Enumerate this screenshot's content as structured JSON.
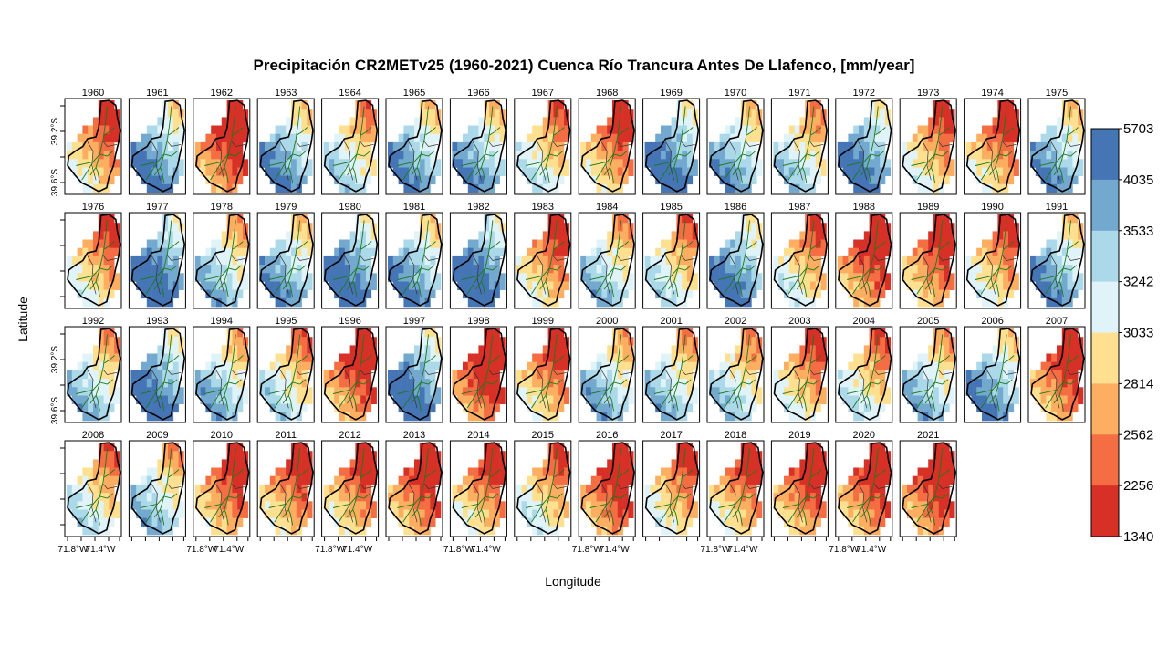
{
  "chart_data": {
    "type": "heatmap",
    "title": "Precipitación CR2METv25 (1960-2021) Cuenca Río Trancura Antes De Llafenco, [mm/year]",
    "xlabel": "Longitude",
    "ylabel": "Latitude",
    "x_tick_labels": [
      "71.8°W",
      "71.4°W"
    ],
    "y_tick_labels": [
      "39.2°S",
      "39.6°S"
    ],
    "colorbar": {
      "labels": [
        "5703",
        "4035",
        "3533",
        "3242",
        "3033",
        "2814",
        "2562",
        "2256",
        "1340"
      ],
      "breaks": [
        5703,
        4035,
        3533,
        3242,
        3033,
        2814,
        2562,
        2256,
        1340
      ],
      "colors": [
        "#4575b4",
        "#74a9cf",
        "#abd9e9",
        "#e0f3f8",
        "#fee090",
        "#fdae61",
        "#f46d43",
        "#d73027"
      ]
    },
    "grid": false,
    "panel_layout": {
      "rows": 4,
      "cols": 16
    },
    "panels": [
      {
        "year": "1960",
        "wetness": 0.25
      },
      {
        "year": "1961",
        "wetness": 0.75
      },
      {
        "year": "1962",
        "wetness": 0.05
      },
      {
        "year": "1963",
        "wetness": 0.72
      },
      {
        "year": "1964",
        "wetness": 0.48
      },
      {
        "year": "1965",
        "wetness": 0.7
      },
      {
        "year": "1966",
        "wetness": 0.68
      },
      {
        "year": "1967",
        "wetness": 0.4
      },
      {
        "year": "1968",
        "wetness": 0.2
      },
      {
        "year": "1969",
        "wetness": 0.82
      },
      {
        "year": "1970",
        "wetness": 0.65
      },
      {
        "year": "1971",
        "wetness": 0.5
      },
      {
        "year": "1972",
        "wetness": 0.8
      },
      {
        "year": "1973",
        "wetness": 0.3
      },
      {
        "year": "1974",
        "wetness": 0.22
      },
      {
        "year": "1975",
        "wetness": 0.68
      },
      {
        "year": "1976",
        "wetness": 0.3
      },
      {
        "year": "1977",
        "wetness": 0.88
      },
      {
        "year": "1978",
        "wetness": 0.58
      },
      {
        "year": "1979",
        "wetness": 0.68
      },
      {
        "year": "1980",
        "wetness": 0.85
      },
      {
        "year": "1981",
        "wetness": 0.72
      },
      {
        "year": "1982",
        "wetness": 0.88
      },
      {
        "year": "1983",
        "wetness": 0.25
      },
      {
        "year": "1984",
        "wetness": 0.55
      },
      {
        "year": "1985",
        "wetness": 0.42
      },
      {
        "year": "1986",
        "wetness": 0.78
      },
      {
        "year": "1987",
        "wetness": 0.35
      },
      {
        "year": "1988",
        "wetness": 0.08
      },
      {
        "year": "1989",
        "wetness": 0.15
      },
      {
        "year": "1990",
        "wetness": 0.3
      },
      {
        "year": "1991",
        "wetness": 0.7
      },
      {
        "year": "1992",
        "wetness": 0.55
      },
      {
        "year": "1993",
        "wetness": 0.82
      },
      {
        "year": "1994",
        "wetness": 0.6
      },
      {
        "year": "1995",
        "wetness": 0.45
      },
      {
        "year": "1996",
        "wetness": 0.08
      },
      {
        "year": "1997",
        "wetness": 0.85
      },
      {
        "year": "1998",
        "wetness": 0.0
      },
      {
        "year": "1999",
        "wetness": 0.22
      },
      {
        "year": "2000",
        "wetness": 0.6
      },
      {
        "year": "2001",
        "wetness": 0.55
      },
      {
        "year": "2002",
        "wetness": 0.5
      },
      {
        "year": "2003",
        "wetness": 0.3
      },
      {
        "year": "2004",
        "wetness": 0.4
      },
      {
        "year": "2005",
        "wetness": 0.58
      },
      {
        "year": "2006",
        "wetness": 0.72
      },
      {
        "year": "2007",
        "wetness": 0.1
      },
      {
        "year": "2008",
        "wetness": 0.42
      },
      {
        "year": "2009",
        "wetness": 0.55
      },
      {
        "year": "2010",
        "wetness": 0.15
      },
      {
        "year": "2011",
        "wetness": 0.18
      },
      {
        "year": "2012",
        "wetness": 0.2
      },
      {
        "year": "2013",
        "wetness": 0.1
      },
      {
        "year": "2014",
        "wetness": 0.22
      },
      {
        "year": "2015",
        "wetness": 0.35
      },
      {
        "year": "2016",
        "wetness": 0.05
      },
      {
        "year": "2017",
        "wetness": 0.28
      },
      {
        "year": "2018",
        "wetness": 0.22
      },
      {
        "year": "2019",
        "wetness": 0.12
      },
      {
        "year": "2020",
        "wetness": 0.1
      },
      {
        "year": "2021",
        "wetness": 0.04
      }
    ]
  }
}
